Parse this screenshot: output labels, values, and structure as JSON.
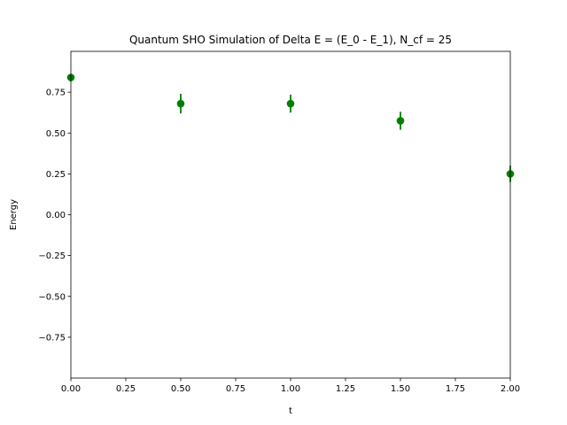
{
  "chart_data": {
    "type": "scatter",
    "title": "Quantum SHO Simulation of Delta E = (E_0 - E_1), N_cf = 25",
    "xlabel": "t",
    "ylabel": "Energy",
    "xlim": [
      0,
      2
    ],
    "ylim": [
      -1,
      1
    ],
    "xticks": [
      0,
      0.25,
      0.5,
      0.75,
      1.0,
      1.25,
      1.5,
      1.75,
      2.0
    ],
    "xtick_labels": [
      "0.00",
      "0.25",
      "0.50",
      "0.75",
      "1.00",
      "1.25",
      "1.50",
      "1.75",
      "2.00"
    ],
    "yticks": [
      0.75,
      0.5,
      0.25,
      0.0,
      -0.25,
      -0.5,
      -0.75
    ],
    "ytick_labels": [
      "0.75",
      "0.50",
      "0.25",
      "0.00",
      "−0.25",
      "−0.50",
      "−0.75"
    ],
    "grid": false,
    "series": [
      {
        "color": "#008000",
        "x": [
          0.0,
          0.5,
          1.0,
          1.5,
          2.0
        ],
        "y": [
          0.84,
          0.68,
          0.68,
          0.575,
          0.25
        ],
        "yerr": [
          0.0,
          0.06,
          0.055,
          0.055,
          0.05
        ]
      }
    ]
  }
}
